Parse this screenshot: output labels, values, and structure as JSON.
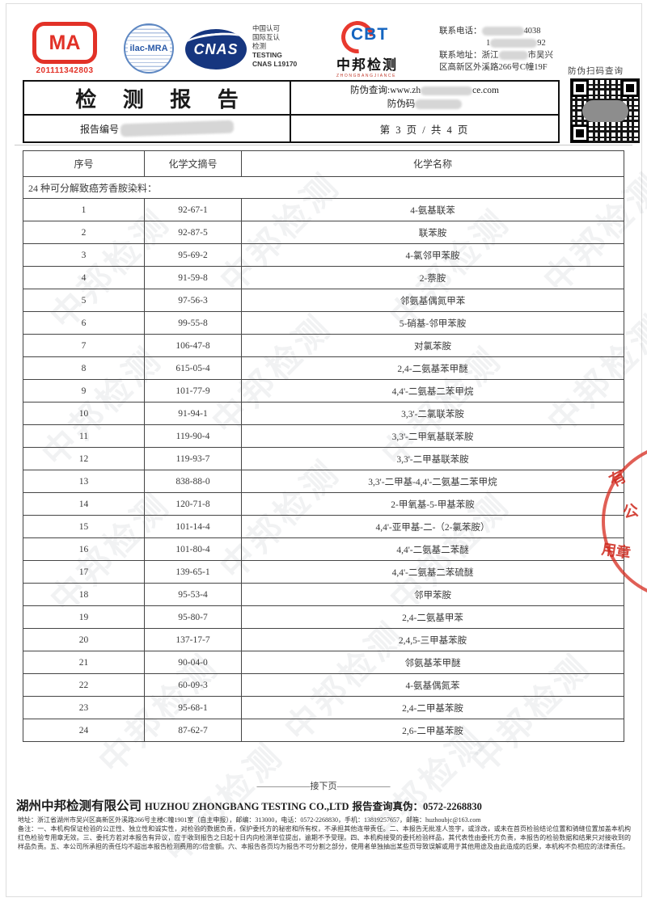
{
  "header": {
    "cma": {
      "label": "MA",
      "number": "201111342803"
    },
    "ilac": {
      "label": "ilac-MRA"
    },
    "cnas": {
      "label": "CNAS"
    },
    "cert_text": {
      "line1": "中国认可",
      "line2": "国际互认",
      "line3": "检测",
      "line4": "TESTING",
      "line5": "CNAS L19170"
    },
    "cbt": {
      "logo": "CBT",
      "name": "中邦检测",
      "subtitle": "ZHONGBANGJIANCE"
    },
    "contact": {
      "phone_label": "联系电话：",
      "phone_suffix": "4038",
      "phone2_prefix": "1",
      "phone2_suffix": "92",
      "addr_label": "联系地址：",
      "addr_prefix": "浙江",
      "addr_mid": "市吴兴",
      "addr_line2": "区高新区外溪路266号C幢19F"
    },
    "anti_fake_scan": "防伪扫码查询"
  },
  "title_band": {
    "title": "检 测 报 告",
    "report_no_label": "报告编号",
    "query_prefix": "防伪查询:www.zh",
    "query_suffix": "ce.com",
    "code_label": "防伪码",
    "page_info": "第 3 页 / 共 4 页"
  },
  "table": {
    "caption": "24 种可分解致癌芳香胺染料：",
    "headers": [
      "序号",
      "化学文摘号",
      "化学名称"
    ],
    "rows": [
      [
        "1",
        "92-67-1",
        "4-氨基联苯"
      ],
      [
        "2",
        "92-87-5",
        "联苯胺"
      ],
      [
        "3",
        "95-69-2",
        "4-氯邻甲苯胺"
      ],
      [
        "4",
        "91-59-8",
        "2-萘胺"
      ],
      [
        "5",
        "97-56-3",
        "邻氨基偶氮甲苯"
      ],
      [
        "6",
        "99-55-8",
        "5-硝基-邻甲苯胺"
      ],
      [
        "7",
        "106-47-8",
        "对氯苯胺"
      ],
      [
        "8",
        "615-05-4",
        "2,4-二氨基苯甲醚"
      ],
      [
        "9",
        "101-77-9",
        "4,4'-二氨基二苯甲烷"
      ],
      [
        "10",
        "91-94-1",
        "3,3'-二氯联苯胺"
      ],
      [
        "11",
        "119-90-4",
        "3,3'-二甲氧基联苯胺"
      ],
      [
        "12",
        "119-93-7",
        "3,3'-二甲基联苯胺"
      ],
      [
        "13",
        "838-88-0",
        "3,3'-二甲基-4,4'-二氨基二苯甲烷"
      ],
      [
        "14",
        "120-71-8",
        "2-甲氧基-5-甲基苯胺"
      ],
      [
        "15",
        "101-14-4",
        "4,4'-亚甲基-二-（2-氯苯胺）"
      ],
      [
        "16",
        "101-80-4",
        "4,4'-二氨基二苯醚"
      ],
      [
        "17",
        "139-65-1",
        "4,4'-二氨基二苯硫醚"
      ],
      [
        "18",
        "95-53-4",
        "邻甲苯胺"
      ],
      [
        "19",
        "95-80-7",
        "2,4-二氨基甲苯"
      ],
      [
        "20",
        "137-17-7",
        "2,4,5-三甲基苯胺"
      ],
      [
        "21",
        "90-04-0",
        "邻氨基苯甲醚"
      ],
      [
        "22",
        "60-09-3",
        "4-氨基偶氮苯"
      ],
      [
        "23",
        "95-68-1",
        "2,4-二甲基苯胺"
      ],
      [
        "24",
        "87-62-7",
        "2,6-二甲基苯胺"
      ]
    ]
  },
  "stamp": {
    "char1": "有",
    "char2": "公",
    "char3": "用章"
  },
  "footer": {
    "next_page": "——————接下页——————",
    "company_cn": "湖州中邦检测有限公司",
    "company_en": "HUZHOU ZHONGBANG TESTING CO.,LTD",
    "verify": "报告查询真伪：0572-2268830",
    "address": "地址：浙江省湖州市吴兴区高新区外溪路266号主楼C幢1901室（自主申报），邮编：313000，电话：0572-2268830，手机：13819257657，邮箱：huzhoubjc@163.com",
    "notes": "备注：一、本机构保证检验的公正性、独立性和诚实性，对检验的数据负责，保护委托方的秘密和所有权，不承担其他连带责任。二、本报告无批准人签字，或涂改，或未在首页检验结论位置和骑缝位置加盖本机构红色检验专用章无效。三、委托方若对本报告有异议，应于收到报告之日起十日内向检测单位提出，逾期不予受理。四、本机构接受的委托检验样品，其代表性由委托方负责，本报告的检验数据和结果只对接收到的样品负责。五、本公司所承担的责任均不超出本报告检测费用的5倍金额。六、本报告各页均为报告不可分割之部分，使用者单独抽出某些页导致误解或用于其他用途及由此造成的后果，本机构不负相应的法律责任。"
  },
  "watermark": "中邦检测"
}
